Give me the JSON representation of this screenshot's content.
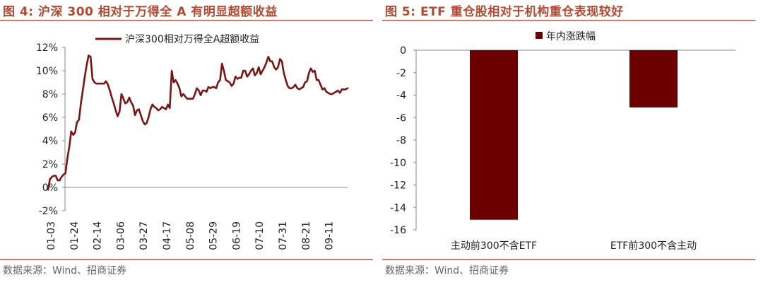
{
  "panels": {
    "left": {
      "title": "图 4:  沪深 300 相对于万得全 A 有明显超额收益",
      "source": "数据来源：Wind、招商证券"
    },
    "right": {
      "title": "图 5:  ETF 重仓股相对于机构重仓表现较好",
      "source": "数据来源：Wind、招商证券"
    }
  },
  "chart_data": [
    {
      "type": "line",
      "title": "",
      "legend": [
        "沪深300相对万得全A超额收益"
      ],
      "legend_position": "top",
      "y_tick_labels": [
        "12%",
        "10%",
        "8%",
        "6%",
        "4%",
        "2%",
        "0%",
        "-2%"
      ],
      "y_tick_values": [
        12,
        10,
        8,
        6,
        4,
        2,
        0,
        -2
      ],
      "ylim": [
        -2,
        12
      ],
      "x_tick_labels": [
        "01-03",
        "01-24",
        "02-14",
        "03-06",
        "03-27",
        "04-17",
        "05-08",
        "05-29",
        "06-19",
        "07-10",
        "07-31",
        "08-21",
        "09-11"
      ],
      "color": "#7b1414",
      "series": [
        {
          "values": [
            -0.2,
            0.7,
            0.9,
            1.0,
            1.0,
            0.6,
            0.6,
            0.9,
            1.1,
            1.2,
            2.5,
            3.5,
            4.8,
            4.5,
            4.7,
            5.6,
            5.8,
            7.2,
            8.3,
            9.5,
            10.5,
            11.3,
            11.2,
            9.3,
            9.0,
            8.9,
            8.9,
            8.9,
            8.9,
            8.9,
            9.1,
            8.8,
            8.3,
            7.7,
            7.2,
            6.6,
            6.1,
            6.5,
            8.0,
            7.6,
            7.2,
            7.3,
            7.7,
            7.3,
            7.0,
            6.2,
            6.6,
            6.7,
            6.2,
            5.7,
            5.4,
            5.5,
            6.0,
            6.7,
            7.1,
            6.9,
            6.8,
            6.6,
            6.7,
            6.9,
            6.8,
            6.7,
            7.1,
            6.8,
            10.0,
            9.0,
            9.2,
            8.9,
            8.5,
            7.8,
            8.0,
            7.8,
            7.6,
            7.6,
            7.6,
            7.6,
            8.0,
            8.5,
            8.3,
            7.9,
            8.3,
            8.3,
            8.2,
            8.6,
            8.5,
            8.6,
            8.6,
            8.5,
            9.0,
            9.2,
            10.6,
            10.0,
            9.2,
            9.1,
            9.0,
            8.7,
            8.9,
            9.5,
            9.3,
            9.4,
            9.4,
            10.0,
            10.0,
            9.5,
            9.7,
            10.0,
            10.2,
            9.6,
            9.8,
            10.3,
            9.7,
            10.0,
            10.3,
            10.7,
            11.2,
            10.8,
            10.8,
            10.3,
            10.1,
            10.3,
            11.0,
            10.8,
            9.8,
            9.2,
            8.7,
            8.5,
            8.5,
            8.6,
            8.8,
            8.5,
            8.4,
            8.5,
            8.6,
            9.0,
            9.1,
            9.8,
            10.2,
            9.9,
            10.0,
            9.2,
            9.2,
            8.8,
            8.4,
            8.5,
            8.2,
            8.1,
            8.0,
            8.0,
            8.1,
            8.2,
            8.3,
            8.1,
            8.4,
            8.4,
            8.4,
            8.5
          ]
        }
      ]
    },
    {
      "type": "bar",
      "title": "",
      "legend": [
        "年内涨跌幅"
      ],
      "legend_position": "top",
      "categories": [
        "主动前300不含ETF",
        "ETF前300不含主动"
      ],
      "values": [
        -15.1,
        -5.1
      ],
      "y_tick_labels": [
        "0",
        "-2",
        "-4",
        "-6",
        "-8",
        "-10",
        "-12",
        "-14",
        "-16"
      ],
      "y_tick_values": [
        0,
        -2,
        -4,
        -6,
        -8,
        -10,
        -12,
        -14,
        -16
      ],
      "ylim": [
        -16,
        0
      ],
      "color": "#6b0000"
    }
  ]
}
